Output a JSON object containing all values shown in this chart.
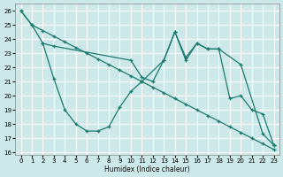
{
  "xlabel": "Humidex (Indice chaleur)",
  "xlim": [
    -0.5,
    23.5
  ],
  "ylim": [
    15.8,
    26.5
  ],
  "yticks": [
    16,
    17,
    18,
    19,
    20,
    21,
    22,
    23,
    24,
    25,
    26
  ],
  "xticks": [
    0,
    1,
    2,
    3,
    4,
    5,
    6,
    7,
    8,
    9,
    10,
    11,
    12,
    13,
    14,
    15,
    16,
    17,
    18,
    19,
    20,
    21,
    22,
    23
  ],
  "background_color": "#cce8e8",
  "grid_color": "#ffffff",
  "line_color": "#1a7a6e",
  "line1_x": [
    0,
    1,
    2,
    3,
    4,
    5,
    6,
    7,
    8,
    9,
    10,
    11,
    12,
    13,
    14,
    15,
    16,
    17,
    18,
    19,
    20,
    21,
    22,
    23
  ],
  "line1_y": [
    26.0,
    25.0,
    24.6,
    24.2,
    23.8,
    23.4,
    23.0,
    22.6,
    22.2,
    21.8,
    21.4,
    21.0,
    20.6,
    20.2,
    19.8,
    19.4,
    19.0,
    18.6,
    18.2,
    17.8,
    17.4,
    17.0,
    16.6,
    16.2
  ],
  "line2_x": [
    0,
    1,
    2,
    3,
    10,
    11,
    12,
    13,
    14,
    15,
    16,
    17,
    18,
    20,
    22,
    23
  ],
  "line2_y": [
    26.0,
    25.0,
    23.7,
    23.5,
    22.5,
    21.3,
    21.0,
    22.5,
    24.5,
    22.5,
    23.7,
    23.3,
    23.3,
    22.2,
    17.3,
    16.5
  ],
  "line3_x": [
    2,
    3,
    4,
    5,
    6,
    7,
    8,
    9,
    10,
    11,
    13,
    14,
    15,
    16,
    17,
    18,
    19,
    20,
    21,
    22,
    23
  ],
  "line3_y": [
    23.7,
    21.2,
    19.0,
    18.0,
    17.5,
    17.5,
    17.8,
    19.2,
    20.3,
    21.0,
    22.5,
    24.5,
    22.7,
    23.7,
    23.3,
    23.3,
    19.8,
    20.0,
    19.0,
    18.7,
    16.5
  ],
  "figsize": [
    3.2,
    2.0
  ],
  "dpi": 100
}
